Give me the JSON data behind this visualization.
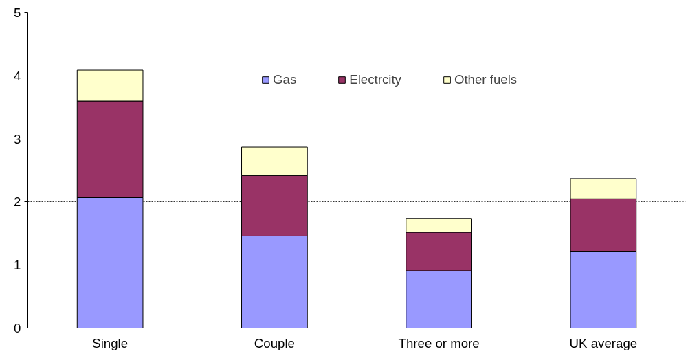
{
  "chart_data": {
    "type": "bar",
    "stacked": true,
    "categories": [
      "Single",
      "Couple",
      "Three or more",
      "UK average"
    ],
    "series": [
      {
        "name": "Gas",
        "color": "#9999ff",
        "values": [
          2.07,
          1.46,
          0.91,
          1.21
        ]
      },
      {
        "name": "Electrcity",
        "color": "#993366",
        "values": [
          1.53,
          0.96,
          0.61,
          0.84
        ]
      },
      {
        "name": "Other fuels",
        "color": "#ffffcc",
        "values": [
          0.49,
          0.45,
          0.22,
          0.32
        ]
      }
    ],
    "ylim": [
      0,
      5
    ],
    "yticks": [
      0,
      1,
      2,
      3,
      4,
      5
    ],
    "grid": "y",
    "legend": "top right"
  }
}
